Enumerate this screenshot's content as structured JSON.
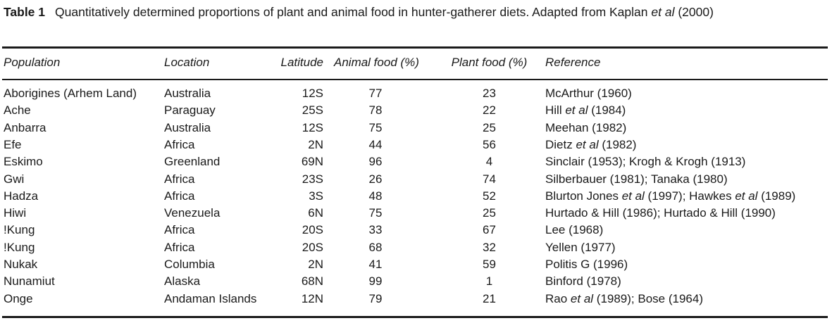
{
  "caption": {
    "label": "Table 1",
    "text_parts": [
      {
        "text": "Quantitatively determined proportions of plant and animal food in hunter-gatherer diets. Adapted from Kaplan ",
        "italic": false
      },
      {
        "text": "et al",
        "italic": true
      },
      {
        "text": " (2000)",
        "italic": false
      }
    ]
  },
  "table": {
    "headers": {
      "population": "Population",
      "location": "Location",
      "latitude": "Latitude",
      "animal": "Animal food (%)",
      "plant": "Plant food (%)",
      "reference": "Reference"
    },
    "rows": [
      {
        "population": "Aborigines (Arhem Land)",
        "location": "Australia",
        "latitude": "12S",
        "animal": "77",
        "plant": "23",
        "reference": [
          {
            "text": "McArthur (1960)"
          }
        ]
      },
      {
        "population": "Ache",
        "location": "Paraguay",
        "latitude": "25S",
        "animal": "78",
        "plant": "22",
        "reference": [
          {
            "text": "Hill "
          },
          {
            "text": "et al",
            "italic": true
          },
          {
            "text": " (1984)"
          }
        ]
      },
      {
        "population": "Anbarra",
        "location": "Australia",
        "latitude": "12S",
        "animal": "75",
        "plant": "25",
        "reference": [
          {
            "text": "Meehan (1982)"
          }
        ]
      },
      {
        "population": "Efe",
        "location": "Africa",
        "latitude": "2N",
        "animal": "44",
        "plant": "56",
        "reference": [
          {
            "text": "Dietz "
          },
          {
            "text": "et al",
            "italic": true
          },
          {
            "text": " (1982)"
          }
        ]
      },
      {
        "population": "Eskimo",
        "location": "Greenland",
        "latitude": "69N",
        "animal": "96",
        "plant": "4",
        "reference": [
          {
            "text": "Sinclair (1953); Krogh & Krogh (1913)"
          }
        ]
      },
      {
        "population": "Gwi",
        "location": "Africa",
        "latitude": "23S",
        "animal": "26",
        "plant": "74",
        "reference": [
          {
            "text": "Silberbauer (1981); Tanaka (1980)"
          }
        ]
      },
      {
        "population": "Hadza",
        "location": "Africa",
        "latitude": "3S",
        "animal": "48",
        "plant": "52",
        "reference": [
          {
            "text": "Blurton Jones "
          },
          {
            "text": "et al",
            "italic": true
          },
          {
            "text": " (1997); Hawkes "
          },
          {
            "text": "et al",
            "italic": true
          },
          {
            "text": " (1989)"
          }
        ]
      },
      {
        "population": "Hiwi",
        "location": "Venezuela",
        "latitude": "6N",
        "animal": "75",
        "plant": "25",
        "reference": [
          {
            "text": "Hurtado & Hill (1986); Hurtado & Hill (1990)"
          }
        ]
      },
      {
        "population": "!Kung",
        "location": "Africa",
        "latitude": "20S",
        "animal": "33",
        "plant": "67",
        "reference": [
          {
            "text": "Lee (1968)"
          }
        ]
      },
      {
        "population": "!Kung",
        "location": "Africa",
        "latitude": "20S",
        "animal": "68",
        "plant": "32",
        "reference": [
          {
            "text": "Yellen (1977)"
          }
        ]
      },
      {
        "population": "Nukak",
        "location": "Columbia",
        "latitude": "2N",
        "animal": "41",
        "plant": "59",
        "reference": [
          {
            "text": "Politis G (1996)"
          }
        ]
      },
      {
        "population": "Nunamiut",
        "location": "Alaska",
        "latitude": "68N",
        "animal": "99",
        "plant": "1",
        "reference": [
          {
            "text": "Binford (1978)"
          }
        ]
      },
      {
        "population": "Onge",
        "location": "Andaman Islands",
        "latitude": "12N",
        "animal": "79",
        "plant": "21",
        "reference": [
          {
            "text": "Rao "
          },
          {
            "text": "et al",
            "italic": true
          },
          {
            "text": " (1989); Bose (1964)"
          }
        ]
      }
    ]
  }
}
